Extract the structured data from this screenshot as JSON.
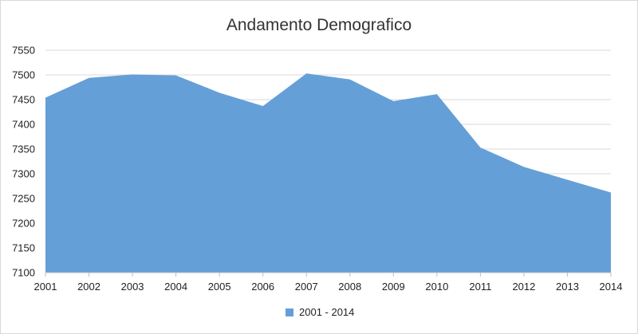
{
  "chart_data": {
    "type": "area",
    "title": "Andamento Demografico",
    "xlabel": "",
    "ylabel": "",
    "categories": [
      "2001",
      "2002",
      "2003",
      "2004",
      "2005",
      "2006",
      "2007",
      "2008",
      "2009",
      "2010",
      "2011",
      "2012",
      "2013",
      "2014"
    ],
    "series": [
      {
        "name": "2001 - 2014",
        "values": [
          7454,
          7494,
          7501,
          7499,
          7464,
          7437,
          7503,
          7491,
          7447,
          7461,
          7353,
          7314,
          7288,
          7262
        ],
        "color": "#659fd7"
      }
    ],
    "ylim": [
      7100,
      7550
    ],
    "yticks": [
      7100,
      7150,
      7200,
      7250,
      7300,
      7350,
      7400,
      7450,
      7500,
      7550
    ],
    "grid": true,
    "legend_position": "bottom"
  }
}
